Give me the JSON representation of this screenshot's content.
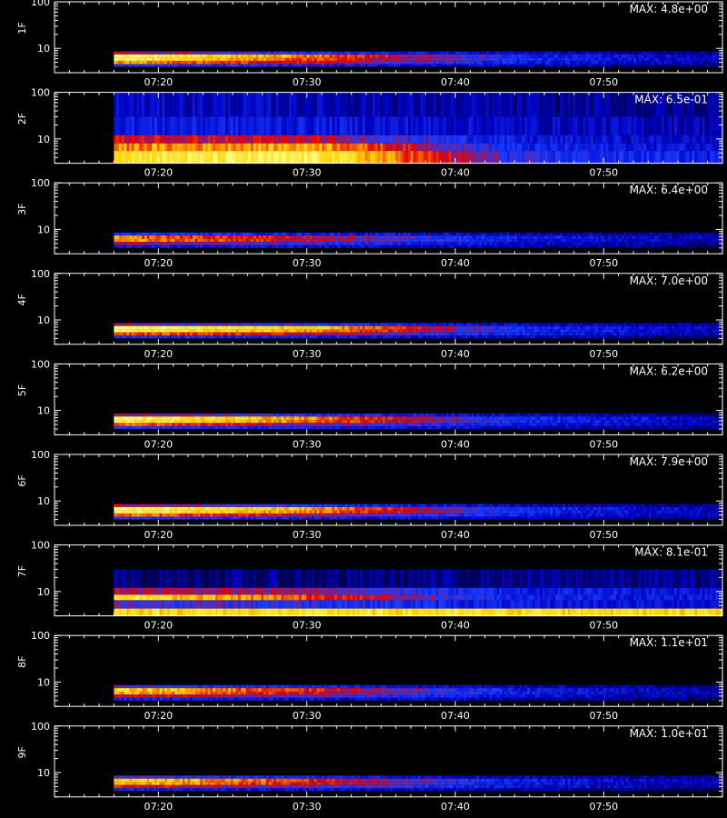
{
  "chart_data": [
    {
      "type": "heatmap",
      "ylabel": "1F",
      "annotation": "MAX: 4.8e+00",
      "max_value": 4.8,
      "y_ticks": [
        "100",
        "10"
      ],
      "x_ticks": [
        "07:20",
        "07:30",
        "07:40",
        "07:50"
      ],
      "ylim": [
        3,
        100
      ],
      "y_scale": "log",
      "data_start": "07:17",
      "data_end": "07:58",
      "x_range": [
        "07:13",
        "07:58"
      ],
      "colormap": [
        "#000010",
        "#0000c0",
        "#1a3cff",
        "#e80000",
        "#ffd000",
        "#ffff80"
      ],
      "bands": [
        {
          "y": [
            7.4,
            8.6
          ],
          "intensity": [
            0.55,
            0.35,
            0.22,
            0.15
          ],
          "gaps": []
        },
        {
          "y": [
            6.2,
            7.4
          ],
          "intensity": [
            0.98,
            0.7,
            0.35,
            0.2
          ],
          "gaps": []
        },
        {
          "y": [
            5.4,
            6.2
          ],
          "intensity": [
            0.95,
            0.65,
            0.35,
            0.2
          ],
          "gaps": []
        },
        {
          "y": [
            4.6,
            5.4
          ],
          "intensity": [
            0.75,
            0.55,
            0.3,
            0.18
          ],
          "gaps": []
        },
        {
          "y": [
            4.0,
            4.6
          ],
          "intensity": [
            0.4,
            0.3,
            0.2,
            0.12
          ],
          "gaps": []
        }
      ]
    },
    {
      "type": "heatmap",
      "ylabel": "2F",
      "annotation": "MAX: 6.5e-01",
      "max_value": 0.65,
      "y_ticks": [
        "100",
        "10"
      ],
      "x_ticks": [
        "07:20",
        "07:30",
        "07:40",
        "07:50"
      ],
      "ylim": [
        3,
        100
      ],
      "y_scale": "log",
      "data_start": "07:17",
      "data_end": "07:58",
      "x_range": [
        "07:13",
        "07:58"
      ],
      "colormap": [
        "#000010",
        "#0000c0",
        "#1a3cff",
        "#e80000",
        "#ffd000",
        "#ffff80"
      ],
      "bands": [
        {
          "y": [
            30,
            100
          ],
          "intensity": [
            0.22,
            0.2,
            0.16,
            0.14
          ],
          "gaps": []
        },
        {
          "y": [
            12,
            30
          ],
          "intensity": [
            0.3,
            0.28,
            0.22,
            0.2
          ],
          "gaps": []
        },
        {
          "y": [
            8,
            12
          ],
          "intensity": [
            0.58,
            0.55,
            0.28,
            0.22
          ],
          "gaps": []
        },
        {
          "y": [
            5.5,
            8
          ],
          "intensity": [
            0.72,
            0.78,
            0.32,
            0.26
          ],
          "gaps": []
        },
        {
          "y": [
            3,
            5.5
          ],
          "intensity": [
            0.88,
            0.92,
            0.38,
            0.3
          ],
          "gaps": []
        }
      ]
    },
    {
      "type": "heatmap",
      "ylabel": "3F",
      "annotation": "MAX: 6.4e+00",
      "max_value": 6.4,
      "y_ticks": [
        "100",
        "10"
      ],
      "x_ticks": [
        "07:20",
        "07:30",
        "07:40",
        "07:50"
      ],
      "ylim": [
        3,
        100
      ],
      "y_scale": "log",
      "data_start": "07:17",
      "data_end": "07:58",
      "x_range": [
        "07:13",
        "07:58"
      ],
      "colormap": [
        "#000010",
        "#0000c0",
        "#1a3cff",
        "#e80000",
        "#ffd000",
        "#ffff80"
      ],
      "bands": [
        {
          "y": [
            7.4,
            8.6
          ],
          "intensity": [
            0.4,
            0.3,
            0.2,
            0.14
          ],
          "gaps": []
        },
        {
          "y": [
            6.2,
            7.4
          ],
          "intensity": [
            0.72,
            0.55,
            0.3,
            0.18
          ],
          "gaps": []
        },
        {
          "y": [
            5.4,
            6.2
          ],
          "intensity": [
            0.75,
            0.55,
            0.3,
            0.18
          ],
          "gaps": []
        },
        {
          "y": [
            4.6,
            5.4
          ],
          "intensity": [
            0.55,
            0.4,
            0.25,
            0.15
          ],
          "gaps": []
        },
        {
          "y": [
            4.0,
            4.6
          ],
          "intensity": [
            0.3,
            0.25,
            0.18,
            0.1
          ],
          "gaps": []
        }
      ]
    },
    {
      "type": "heatmap",
      "ylabel": "4F",
      "annotation": "MAX: 7.0e+00",
      "max_value": 7.0,
      "y_ticks": [
        "100",
        "10"
      ],
      "x_ticks": [
        "07:20",
        "07:30",
        "07:40",
        "07:50"
      ],
      "ylim": [
        3,
        100
      ],
      "y_scale": "log",
      "data_start": "07:17",
      "data_end": "07:58",
      "x_range": [
        "07:13",
        "07:58"
      ],
      "colormap": [
        "#000010",
        "#0000c0",
        "#1a3cff",
        "#e80000",
        "#ffd000",
        "#ffff80"
      ],
      "bands": [
        {
          "y": [
            7.4,
            8.6
          ],
          "intensity": [
            0.5,
            0.4,
            0.22,
            0.15
          ],
          "gaps": []
        },
        {
          "y": [
            6.2,
            7.4
          ],
          "intensity": [
            0.98,
            0.8,
            0.35,
            0.2
          ],
          "gaps": []
        },
        {
          "y": [
            5.4,
            6.2
          ],
          "intensity": [
            0.95,
            0.75,
            0.35,
            0.2
          ],
          "gaps": []
        },
        {
          "y": [
            4.6,
            5.4
          ],
          "intensity": [
            0.7,
            0.55,
            0.3,
            0.18
          ],
          "gaps": []
        },
        {
          "y": [
            4.0,
            4.6
          ],
          "intensity": [
            0.38,
            0.3,
            0.2,
            0.12
          ],
          "gaps": []
        }
      ]
    },
    {
      "type": "heatmap",
      "ylabel": "5F",
      "annotation": "MAX: 6.2e+00",
      "max_value": 6.2,
      "y_ticks": [
        "100",
        "10"
      ],
      "x_ticks": [
        "07:20",
        "07:30",
        "07:40",
        "07:50"
      ],
      "ylim": [
        3,
        100
      ],
      "y_scale": "log",
      "data_start": "07:17",
      "data_end": "07:58",
      "x_range": [
        "07:13",
        "07:58"
      ],
      "colormap": [
        "#000010",
        "#0000c0",
        "#1a3cff",
        "#e80000",
        "#ffd000",
        "#ffff80"
      ],
      "bands": [
        {
          "y": [
            7.4,
            8.6
          ],
          "intensity": [
            0.55,
            0.38,
            0.22,
            0.15
          ],
          "gaps": []
        },
        {
          "y": [
            6.2,
            7.4
          ],
          "intensity": [
            0.96,
            0.72,
            0.35,
            0.2
          ],
          "gaps": []
        },
        {
          "y": [
            5.4,
            6.2
          ],
          "intensity": [
            0.95,
            0.7,
            0.35,
            0.2
          ],
          "gaps": []
        },
        {
          "y": [
            4.6,
            5.4
          ],
          "intensity": [
            0.7,
            0.5,
            0.3,
            0.18
          ],
          "gaps": []
        },
        {
          "y": [
            4.0,
            4.6
          ],
          "intensity": [
            0.38,
            0.3,
            0.2,
            0.12
          ],
          "gaps": []
        }
      ]
    },
    {
      "type": "heatmap",
      "ylabel": "6F",
      "annotation": "MAX: 7.9e+00",
      "max_value": 7.9,
      "y_ticks": [
        "100",
        "10"
      ],
      "x_ticks": [
        "07:20",
        "07:30",
        "07:40",
        "07:50"
      ],
      "ylim": [
        3,
        100
      ],
      "y_scale": "log",
      "data_start": "07:17",
      "data_end": "07:58",
      "x_range": [
        "07:13",
        "07:58"
      ],
      "colormap": [
        "#000010",
        "#0000c0",
        "#1a3cff",
        "#e80000",
        "#ffd000",
        "#ffff80"
      ],
      "bands": [
        {
          "y": [
            7.4,
            8.6
          ],
          "intensity": [
            0.55,
            0.38,
            0.22,
            0.15
          ],
          "gaps": []
        },
        {
          "y": [
            6.2,
            7.4
          ],
          "intensity": [
            0.98,
            0.75,
            0.35,
            0.2
          ],
          "gaps": []
        },
        {
          "y": [
            5.4,
            6.2
          ],
          "intensity": [
            0.96,
            0.72,
            0.35,
            0.2
          ],
          "gaps": []
        },
        {
          "y": [
            4.6,
            5.4
          ],
          "intensity": [
            0.72,
            0.52,
            0.3,
            0.18
          ],
          "gaps": []
        },
        {
          "y": [
            4.0,
            4.6
          ],
          "intensity": [
            0.4,
            0.3,
            0.2,
            0.12
          ],
          "gaps": []
        }
      ]
    },
    {
      "type": "heatmap",
      "ylabel": "7F",
      "annotation": "MAX: 8.1e-01",
      "max_value": 0.81,
      "y_ticks": [
        "100",
        "10"
      ],
      "x_ticks": [
        "07:20",
        "07:30",
        "07:40",
        "07:50"
      ],
      "ylim": [
        3,
        100
      ],
      "y_scale": "log",
      "data_start": "07:17",
      "data_end": "07:58",
      "x_range": [
        "07:13",
        "07:58"
      ],
      "colormap": [
        "#000010",
        "#0000c0",
        "#1a3cff",
        "#e80000",
        "#ffd000",
        "#ffff80"
      ],
      "bands": [
        {
          "y": [
            12,
            30
          ],
          "intensity": [
            0.12,
            0.12,
            0.14,
            0.14
          ],
          "gaps": []
        },
        {
          "y": [
            8.5,
            12
          ],
          "intensity": [
            0.55,
            0.5,
            0.3,
            0.28
          ],
          "gaps": []
        },
        {
          "y": [
            6.5,
            8.5
          ],
          "intensity": [
            0.9,
            0.65,
            0.32,
            0.28
          ],
          "gaps": []
        },
        {
          "y": [
            4.3,
            6.5
          ],
          "intensity": [
            0.45,
            0.4,
            0.28,
            0.25
          ],
          "gaps": []
        },
        {
          "y": [
            3,
            4.3
          ],
          "intensity": [
            0.85,
            0.85,
            0.85,
            0.85
          ],
          "gaps": []
        }
      ]
    },
    {
      "type": "heatmap",
      "ylabel": "8F",
      "annotation": "MAX: 1.1e+01",
      "max_value": 11,
      "y_ticks": [
        "100",
        "10"
      ],
      "x_ticks": [
        "07:20",
        "07:30",
        "07:40",
        "07:50"
      ],
      "ylim": [
        3,
        100
      ],
      "y_scale": "log",
      "data_start": "07:17",
      "data_end": "07:58",
      "x_range": [
        "07:13",
        "07:58"
      ],
      "colormap": [
        "#000010",
        "#0000c0",
        "#1a3cff",
        "#e80000",
        "#ffd000",
        "#ffff80"
      ],
      "bands": [
        {
          "y": [
            7.4,
            8.6
          ],
          "intensity": [
            0.45,
            0.32,
            0.2,
            0.14
          ],
          "gaps": []
        },
        {
          "y": [
            6.2,
            7.4
          ],
          "intensity": [
            0.85,
            0.6,
            0.3,
            0.18
          ],
          "gaps": []
        },
        {
          "y": [
            5.4,
            6.2
          ],
          "intensity": [
            0.8,
            0.58,
            0.3,
            0.18
          ],
          "gaps": []
        },
        {
          "y": [
            4.6,
            5.4
          ],
          "intensity": [
            0.6,
            0.45,
            0.26,
            0.16
          ],
          "gaps": []
        },
        {
          "y": [
            4.0,
            4.6
          ],
          "intensity": [
            0.32,
            0.26,
            0.18,
            0.1
          ],
          "gaps": []
        }
      ]
    },
    {
      "type": "heatmap",
      "ylabel": "9F",
      "annotation": "MAX: 1.0e+01",
      "max_value": 10,
      "y_ticks": [
        "100",
        "10"
      ],
      "x_ticks": [
        "07:20",
        "07:30",
        "07:40",
        "07:50"
      ],
      "ylim": [
        3,
        100
      ],
      "y_scale": "log",
      "data_start": "07:17",
      "data_end": "07:58",
      "x_range": [
        "07:13",
        "07:58"
      ],
      "colormap": [
        "#000010",
        "#0000c0",
        "#1a3cff",
        "#e80000",
        "#ffd000",
        "#ffff80"
      ],
      "bands": [
        {
          "y": [
            7.4,
            8.6
          ],
          "intensity": [
            0.45,
            0.32,
            0.2,
            0.14
          ],
          "gaps": []
        },
        {
          "y": [
            6.2,
            7.4
          ],
          "intensity": [
            0.85,
            0.62,
            0.3,
            0.18
          ],
          "gaps": []
        },
        {
          "y": [
            5.4,
            6.2
          ],
          "intensity": [
            0.82,
            0.6,
            0.3,
            0.18
          ],
          "gaps": []
        },
        {
          "y": [
            4.6,
            5.4
          ],
          "intensity": [
            0.6,
            0.45,
            0.26,
            0.16
          ],
          "gaps": []
        },
        {
          "y": [
            4.0,
            4.6
          ],
          "intensity": [
            0.32,
            0.26,
            0.18,
            0.1
          ],
          "gaps": []
        }
      ]
    }
  ],
  "colors": {
    "background": "#000000",
    "axes": "#ffffff",
    "text": "#ffffff"
  }
}
